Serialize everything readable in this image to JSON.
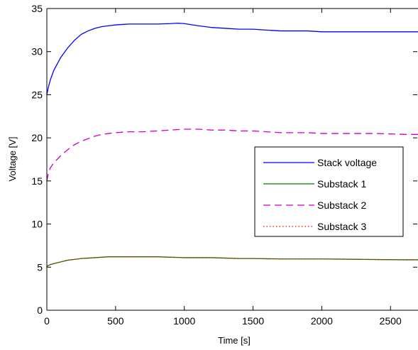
{
  "chart_data": {
    "type": "line",
    "xlabel": "Time [s]",
    "ylabel": "Voltage [V]",
    "xlim": [
      0,
      2700
    ],
    "ylim": [
      0,
      35
    ],
    "xticks": [
      0,
      500,
      1000,
      1500,
      2000,
      2500
    ],
    "yticks": [
      0,
      5,
      10,
      15,
      20,
      25,
      30,
      35
    ],
    "grid": false,
    "legend_position": "center-right",
    "series": [
      {
        "name": "Stack voltage",
        "color": "#0000ff",
        "style": "solid",
        "x": [
          0,
          10,
          25,
          50,
          100,
          150,
          200,
          250,
          300,
          350,
          400,
          450,
          500,
          550,
          600,
          700,
          800,
          900,
          950,
          1000,
          1100,
          1200,
          1300,
          1400,
          1500,
          1600,
          1700,
          1800,
          1900,
          2000,
          2100,
          2200,
          2300,
          2400,
          2500,
          2600,
          2700
        ],
        "y": [
          25.0,
          25.8,
          26.7,
          27.8,
          29.3,
          30.4,
          31.3,
          32.0,
          32.4,
          32.7,
          32.9,
          33.0,
          33.1,
          33.15,
          33.2,
          33.2,
          33.2,
          33.25,
          33.3,
          33.25,
          33.0,
          32.8,
          32.7,
          32.6,
          32.6,
          32.5,
          32.4,
          32.4,
          32.4,
          32.3,
          32.3,
          32.3,
          32.3,
          32.3,
          32.3,
          32.3,
          32.3
        ]
      },
      {
        "name": "Substack 1",
        "color": "#008000",
        "style": "solid",
        "x": [
          0,
          25,
          50,
          100,
          150,
          200,
          250,
          300,
          350,
          400,
          450,
          500,
          600,
          700,
          800,
          900,
          1000,
          1100,
          1200,
          1300,
          1400,
          1500,
          1700,
          2000,
          2300,
          2600,
          2700
        ],
        "y": [
          5.1,
          5.3,
          5.4,
          5.6,
          5.8,
          5.9,
          6.0,
          6.05,
          6.1,
          6.15,
          6.2,
          6.2,
          6.2,
          6.2,
          6.2,
          6.15,
          6.1,
          6.1,
          6.1,
          6.05,
          6.0,
          6.0,
          5.95,
          5.95,
          5.9,
          5.85,
          5.85
        ]
      },
      {
        "name": "Substack 2",
        "color": "#cc00cc",
        "style": "dashed",
        "x": [
          0,
          10,
          25,
          50,
          100,
          150,
          200,
          250,
          300,
          350,
          400,
          450,
          500,
          600,
          700,
          800,
          900,
          1000,
          1100,
          1200,
          1300,
          1400,
          1500,
          1600,
          1700,
          1800,
          1900,
          2000,
          2200,
          2400,
          2600,
          2700
        ],
        "y": [
          15.0,
          15.8,
          16.5,
          17.1,
          17.9,
          18.6,
          19.2,
          19.6,
          19.9,
          20.2,
          20.4,
          20.5,
          20.6,
          20.7,
          20.7,
          20.8,
          20.9,
          21.0,
          21.0,
          20.9,
          20.9,
          20.8,
          20.8,
          20.7,
          20.6,
          20.6,
          20.6,
          20.5,
          20.5,
          20.5,
          20.4,
          20.4
        ]
      },
      {
        "name": "Substack 3",
        "color": "#ff0000",
        "style": "dotted",
        "x": [
          0,
          25,
          50,
          100,
          150,
          200,
          250,
          300,
          350,
          400,
          450,
          500,
          600,
          700,
          800,
          900,
          1000,
          1100,
          1200,
          1300,
          1400,
          1500,
          1700,
          2000,
          2300,
          2600,
          2700
        ],
        "y": [
          5.1,
          5.3,
          5.4,
          5.6,
          5.8,
          5.9,
          6.0,
          6.05,
          6.1,
          6.15,
          6.2,
          6.2,
          6.2,
          6.2,
          6.2,
          6.15,
          6.1,
          6.1,
          6.1,
          6.05,
          6.0,
          6.0,
          5.95,
          5.95,
          5.9,
          5.85,
          5.85
        ]
      }
    ]
  }
}
